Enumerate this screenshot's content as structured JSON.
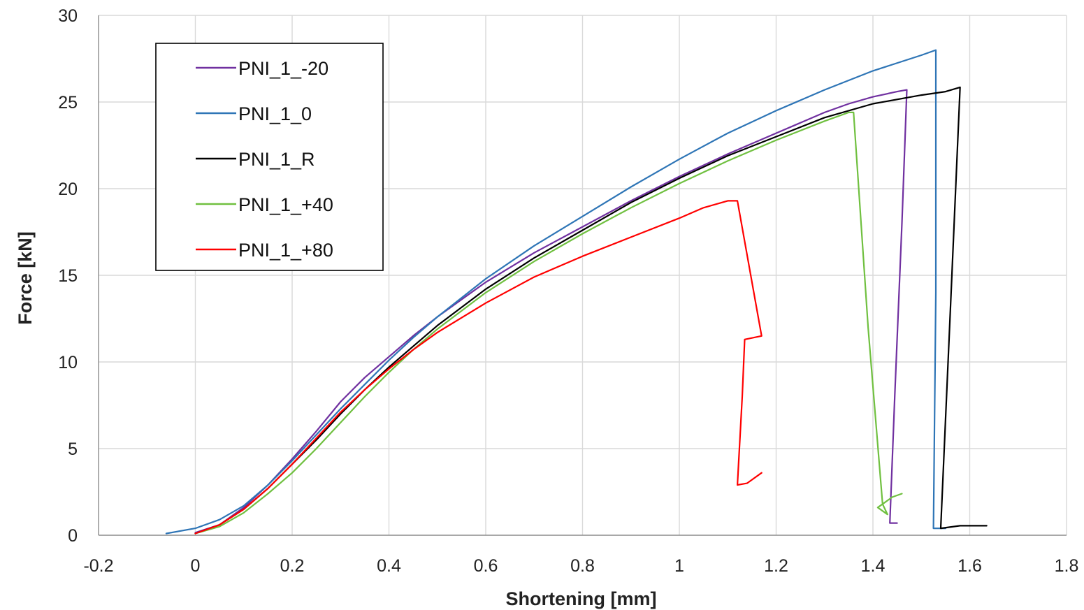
{
  "chart_data": {
    "type": "line",
    "title": "",
    "xlabel": "Shortening [mm]",
    "ylabel": "Force [kN]",
    "xlim": [
      -0.2,
      1.8
    ],
    "ylim": [
      0,
      30
    ],
    "x_ticks": [
      -0.2,
      0,
      0.2,
      0.4,
      0.6,
      0.8,
      1,
      1.2,
      1.4,
      1.6,
      1.8
    ],
    "x_tick_labels": [
      "-0.2",
      "0",
      "0.2",
      "0.4",
      "0.6",
      "0.8",
      "1",
      "1.2",
      "1.4",
      "1.6",
      "1.8"
    ],
    "y_ticks": [
      0,
      5,
      10,
      15,
      20,
      25,
      30
    ],
    "y_tick_labels": [
      "0",
      "5",
      "10",
      "15",
      "20",
      "25",
      "30"
    ],
    "grid": true,
    "legend_position": "top-left",
    "series": [
      {
        "name": "PNI_1_-20",
        "color": "#7030a0",
        "points": [
          [
            0,
            0.15
          ],
          [
            0.05,
            0.6
          ],
          [
            0.1,
            1.6
          ],
          [
            0.15,
            2.9
          ],
          [
            0.2,
            4.4
          ],
          [
            0.25,
            6.0
          ],
          [
            0.3,
            7.7
          ],
          [
            0.35,
            9.1
          ],
          [
            0.4,
            10.3
          ],
          [
            0.45,
            11.5
          ],
          [
            0.5,
            12.6
          ],
          [
            0.6,
            14.6
          ],
          [
            0.7,
            16.3
          ],
          [
            0.8,
            17.8
          ],
          [
            0.9,
            19.3
          ],
          [
            1.0,
            20.7
          ],
          [
            1.1,
            22.0
          ],
          [
            1.2,
            23.2
          ],
          [
            1.3,
            24.4
          ],
          [
            1.35,
            24.9
          ],
          [
            1.4,
            25.3
          ],
          [
            1.45,
            25.6
          ],
          [
            1.47,
            25.7
          ],
          [
            1.46,
            18.0
          ],
          [
            1.445,
            8.0
          ],
          [
            1.435,
            0.7
          ],
          [
            1.45,
            0.7
          ]
        ]
      },
      {
        "name": "PNI_1_0",
        "color": "#2e75b6",
        "points": [
          [
            -0.06,
            0.1
          ],
          [
            0,
            0.4
          ],
          [
            0.05,
            0.9
          ],
          [
            0.1,
            1.7
          ],
          [
            0.15,
            2.9
          ],
          [
            0.2,
            4.3
          ],
          [
            0.25,
            5.8
          ],
          [
            0.3,
            7.3
          ],
          [
            0.35,
            8.7
          ],
          [
            0.4,
            10.1
          ],
          [
            0.45,
            11.4
          ],
          [
            0.5,
            12.6
          ],
          [
            0.6,
            14.8
          ],
          [
            0.7,
            16.7
          ],
          [
            0.8,
            18.4
          ],
          [
            0.9,
            20.1
          ],
          [
            1.0,
            21.7
          ],
          [
            1.1,
            23.2
          ],
          [
            1.2,
            24.5
          ],
          [
            1.3,
            25.7
          ],
          [
            1.4,
            26.8
          ],
          [
            1.5,
            27.7
          ],
          [
            1.53,
            28.0
          ],
          [
            1.53,
            14.0
          ],
          [
            1.525,
            0.4
          ],
          [
            1.55,
            0.4
          ]
        ]
      },
      {
        "name": "PNI_1_R",
        "color": "#000000",
        "points": [
          [
            0,
            0.1
          ],
          [
            0.05,
            0.6
          ],
          [
            0.1,
            1.5
          ],
          [
            0.15,
            2.7
          ],
          [
            0.2,
            4.1
          ],
          [
            0.25,
            5.5
          ],
          [
            0.3,
            7.0
          ],
          [
            0.35,
            8.4
          ],
          [
            0.4,
            9.7
          ],
          [
            0.45,
            10.9
          ],
          [
            0.5,
            12.1
          ],
          [
            0.6,
            14.2
          ],
          [
            0.7,
            16.0
          ],
          [
            0.8,
            17.6
          ],
          [
            0.9,
            19.2
          ],
          [
            1.0,
            20.6
          ],
          [
            1.1,
            21.9
          ],
          [
            1.2,
            23.0
          ],
          [
            1.3,
            24.1
          ],
          [
            1.4,
            24.9
          ],
          [
            1.5,
            25.4
          ],
          [
            1.55,
            25.6
          ],
          [
            1.58,
            25.85
          ],
          [
            1.56,
            13.0
          ],
          [
            1.54,
            0.4
          ],
          [
            1.58,
            0.55
          ],
          [
            1.635,
            0.55
          ]
        ]
      },
      {
        "name": "PNI_1_+40",
        "color": "#70c040",
        "points": [
          [
            0,
            0.1
          ],
          [
            0.05,
            0.5
          ],
          [
            0.1,
            1.3
          ],
          [
            0.15,
            2.4
          ],
          [
            0.2,
            3.6
          ],
          [
            0.25,
            5.0
          ],
          [
            0.3,
            6.5
          ],
          [
            0.35,
            8.0
          ],
          [
            0.4,
            9.4
          ],
          [
            0.45,
            10.7
          ],
          [
            0.5,
            11.9
          ],
          [
            0.6,
            14.0
          ],
          [
            0.7,
            15.8
          ],
          [
            0.8,
            17.4
          ],
          [
            0.9,
            18.9
          ],
          [
            1.0,
            20.3
          ],
          [
            1.1,
            21.6
          ],
          [
            1.2,
            22.8
          ],
          [
            1.3,
            23.9
          ],
          [
            1.35,
            24.4
          ],
          [
            1.36,
            24.4
          ],
          [
            1.39,
            12.0
          ],
          [
            1.42,
            1.8
          ],
          [
            1.43,
            1.2
          ],
          [
            1.41,
            1.6
          ],
          [
            1.44,
            2.2
          ],
          [
            1.46,
            2.4
          ]
        ]
      },
      {
        "name": "PNI_1_+80",
        "color": "#ff0000",
        "points": [
          [
            0,
            0.1
          ],
          [
            0.05,
            0.6
          ],
          [
            0.1,
            1.5
          ],
          [
            0.15,
            2.7
          ],
          [
            0.2,
            4.1
          ],
          [
            0.25,
            5.6
          ],
          [
            0.3,
            7.1
          ],
          [
            0.35,
            8.4
          ],
          [
            0.4,
            9.6
          ],
          [
            0.45,
            10.7
          ],
          [
            0.5,
            11.7
          ],
          [
            0.6,
            13.4
          ],
          [
            0.7,
            14.9
          ],
          [
            0.8,
            16.1
          ],
          [
            0.9,
            17.2
          ],
          [
            1.0,
            18.3
          ],
          [
            1.05,
            18.9
          ],
          [
            1.1,
            19.3
          ],
          [
            1.12,
            19.3
          ],
          [
            1.17,
            11.5
          ],
          [
            1.135,
            11.3
          ],
          [
            1.13,
            8.0
          ],
          [
            1.12,
            2.9
          ],
          [
            1.14,
            3.0
          ],
          [
            1.17,
            3.6
          ]
        ]
      }
    ]
  }
}
